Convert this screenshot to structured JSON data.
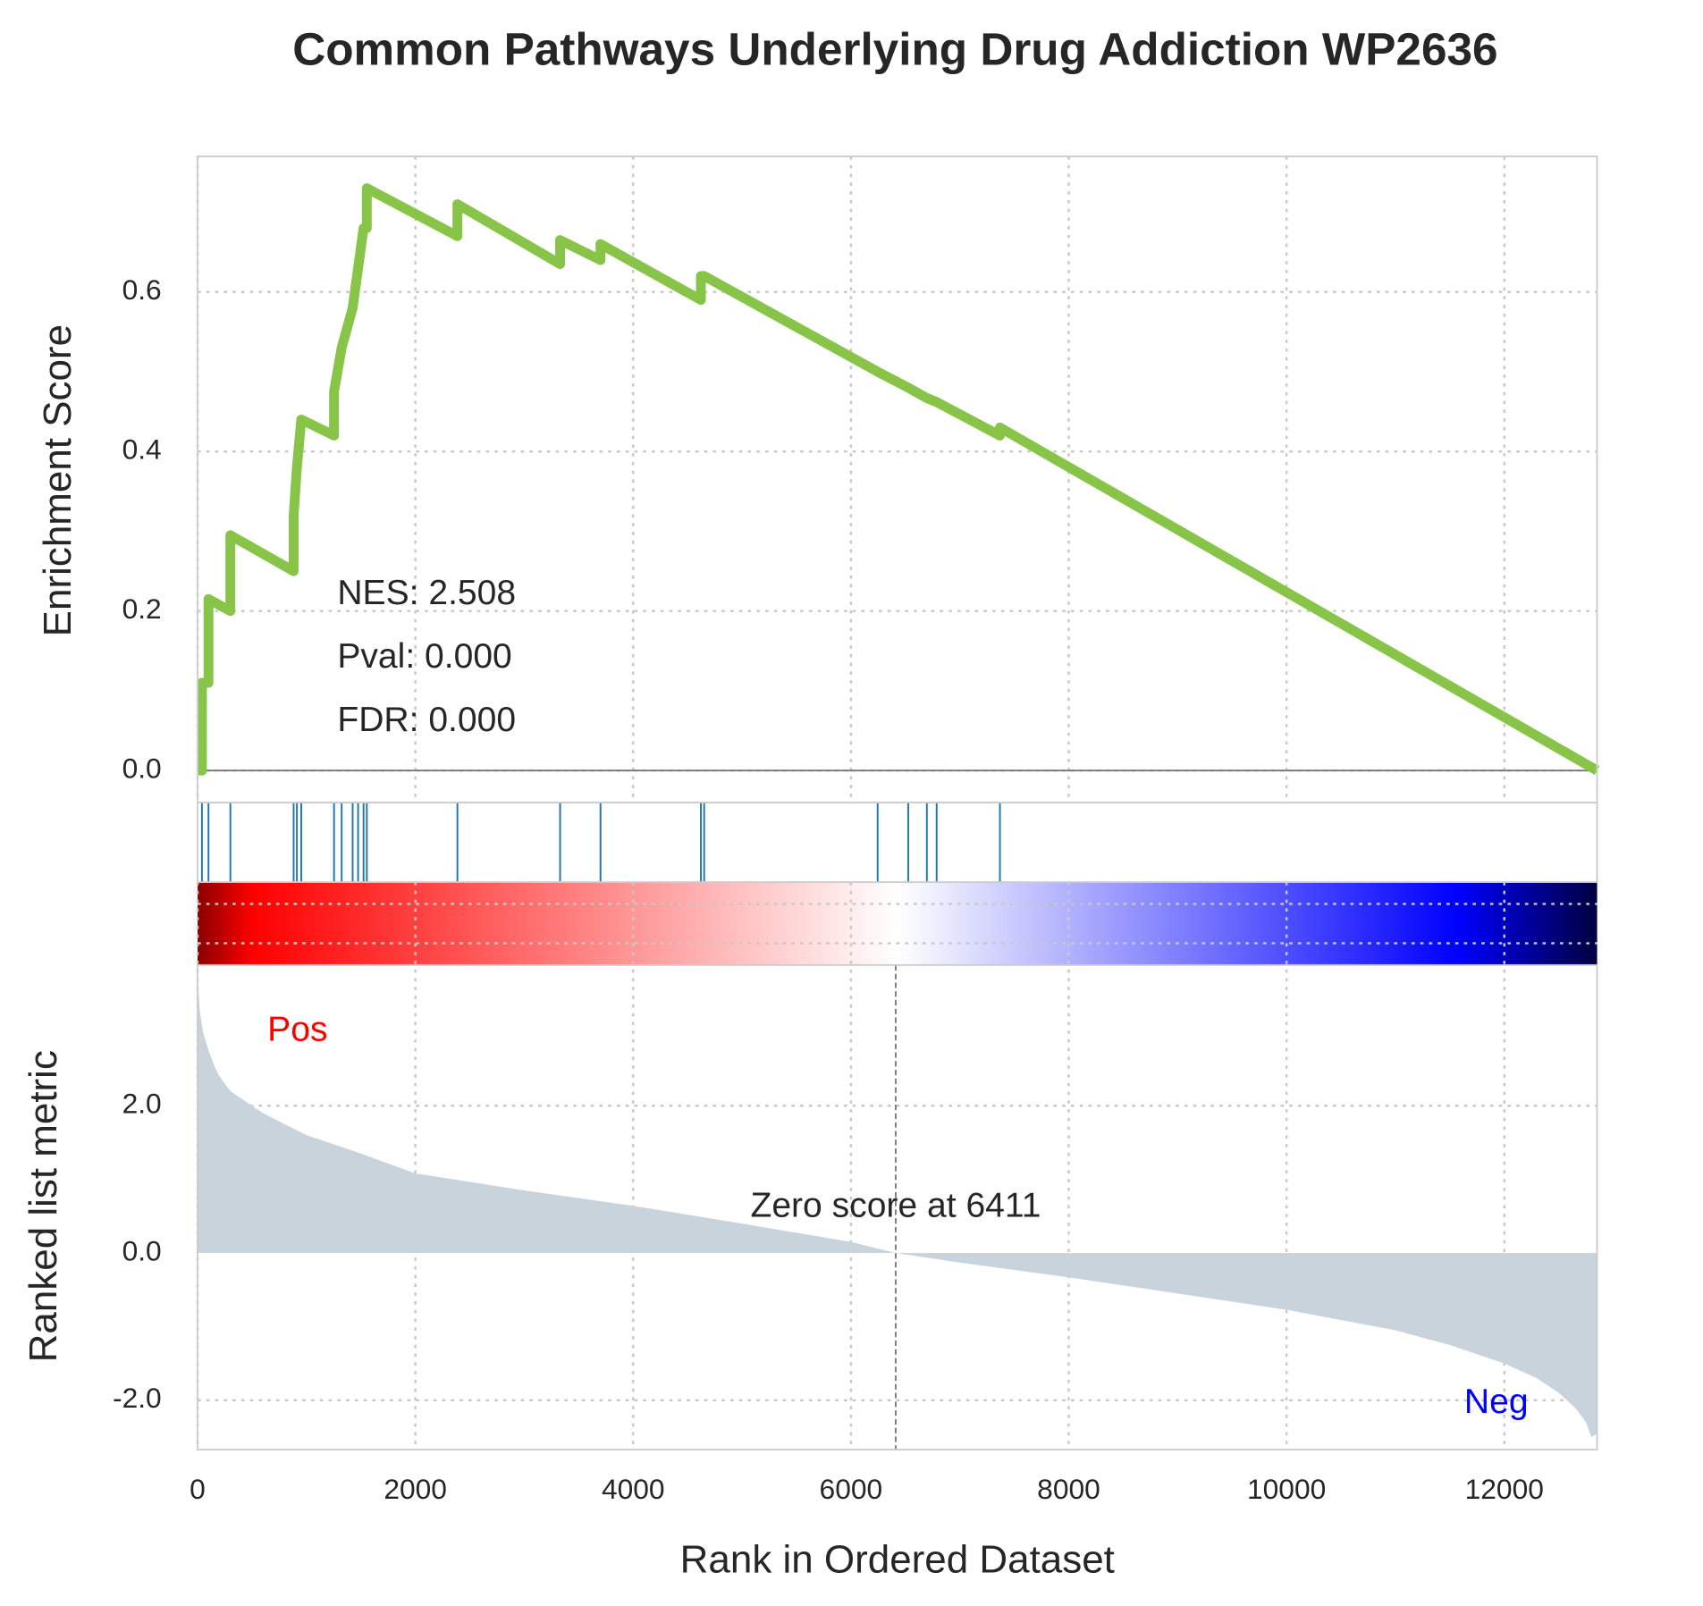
{
  "chart_data": {
    "type": "gsea",
    "title": "Common Pathways Underlying Drug Addiction WP2636",
    "xlabel": "Rank in Ordered Dataset",
    "ylabel": "Enrichment Score",
    "metric_ylabel": "Ranked list metric",
    "annotations": [
      "NES: 2.508",
      "Pval: 0.000",
      "FDR: 0.000"
    ],
    "pos_label": "Pos",
    "neg_label": "Neg",
    "zero_label": "Zero score at 6411",
    "zero_score_rank": 6411,
    "xlim": [
      0,
      12852
    ],
    "xticks": [
      0,
      2000,
      4000,
      6000,
      8000,
      10000,
      12000
    ],
    "ylim": [
      -0.04,
      0.77
    ],
    "yticks": [
      {
        "value": 0,
        "label": "0.0"
      },
      0.2,
      0.4,
      0.6
    ],
    "metric_ylim": [
      -2.67,
      3.91
    ],
    "metric_yticks": [
      {
        "value": -2,
        "label": "-2.0"
      },
      {
        "value": 0,
        "label": "0.0"
      },
      {
        "value": 2,
        "label": "2.0"
      }
    ],
    "grid": true,
    "color": "#88c447",
    "hit_color": "#1f77b4",
    "metric_color": "#c9d3dc",
    "x": [
      0,
      40,
      40,
      100,
      100,
      301,
      301,
      882,
      882,
      912,
      952,
      1253,
      1253,
      1323,
      1424,
      1474,
      1524,
      1554,
      1554,
      2386,
      2386,
      3329,
      3329,
      3700,
      3700,
      4622,
      4622,
      4652,
      6245,
      6526,
      6697,
      6787,
      7368,
      7368,
      12852
    ],
    "values": [
      0,
      0,
      0.11,
      0.11,
      0.215,
      0.2,
      0.295,
      0.25,
      0.32,
      0.38,
      0.44,
      0.42,
      0.475,
      0.53,
      0.58,
      0.63,
      0.68,
      0.68,
      0.73,
      0.67,
      0.71,
      0.635,
      0.665,
      0.64,
      0.66,
      0.59,
      0.62,
      0.62,
      0.5,
      0.48,
      0.467,
      0.462,
      0.42,
      0.43,
      0
    ],
    "hits": [
      40,
      100,
      301,
      882,
      912,
      952,
      1253,
      1323,
      1424,
      1474,
      1524,
      1554,
      2386,
      3329,
      3700,
      4622,
      4652,
      6245,
      6526,
      6697,
      6787,
      7368
    ],
    "metric_x": [
      0,
      20,
      50,
      100,
      150,
      200,
      300,
      450,
      600,
      800,
      1000,
      1500,
      2000,
      3000,
      4000,
      5000,
      6000,
      6411,
      7000,
      8000,
      9000,
      10000,
      11000,
      11500,
      12000,
      12300,
      12500,
      12650,
      12750,
      12800,
      12852
    ],
    "metric_values": [
      3.8,
      3.3,
      3.0,
      2.75,
      2.55,
      2.4,
      2.2,
      2.05,
      1.9,
      1.75,
      1.6,
      1.35,
      1.08,
      0.85,
      0.64,
      0.4,
      0.15,
      0,
      -0.13,
      -0.33,
      -0.55,
      -0.77,
      -1.05,
      -1.25,
      -1.5,
      -1.7,
      -1.9,
      -2.1,
      -2.3,
      -2.5,
      -2.45
    ]
  }
}
